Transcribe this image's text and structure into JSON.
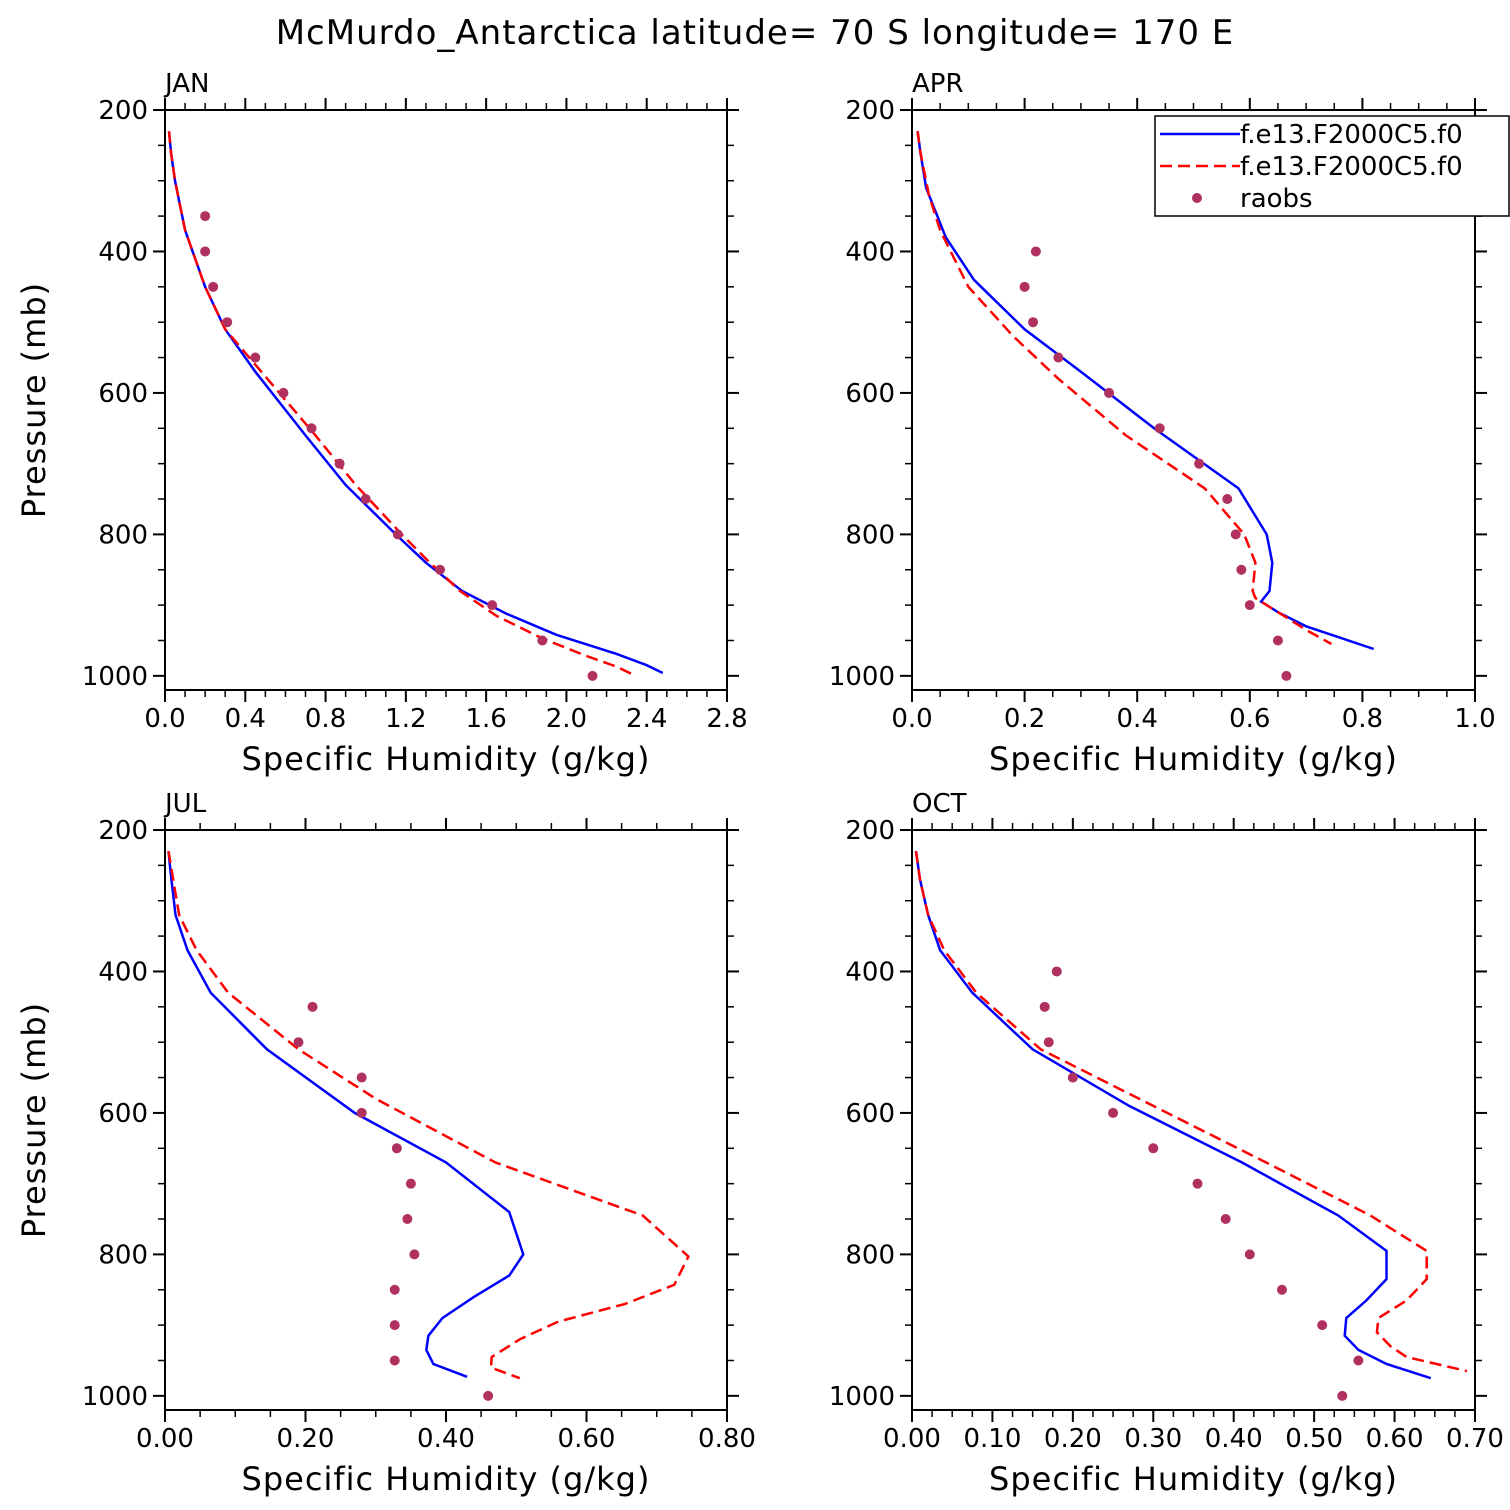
{
  "title": "McMurdo_Antarctica  latitude= 70 S longitude= 170 E",
  "legend": {
    "entries": [
      {
        "label": "f.e13.F2000C5.f0",
        "style": "solid",
        "color": "#0000ff"
      },
      {
        "label": "f.e13.F2000C5.f0",
        "style": "dashed",
        "color": "#ff0000"
      },
      {
        "label": "raobs",
        "style": "dot",
        "color": "#b03060"
      }
    ]
  },
  "colors": {
    "model_solid": "#0000ff",
    "model_dashed": "#ff0000",
    "raobs": "#b03060"
  },
  "chart_data": [
    {
      "type": "line",
      "panel": "JAN",
      "title": "JAN",
      "xlabel": "Specific Humidity (g/kg)",
      "ylabel": "Pressure (mb)",
      "xlim": [
        0,
        2.8
      ],
      "ylim": [
        1020,
        200
      ],
      "xticks": [
        0,
        0.4,
        0.8,
        1.2,
        1.6,
        2.0,
        2.4,
        2.8
      ],
      "xtick_labels": [
        "0.0",
        "0.4",
        "0.8",
        "1.2",
        "1.6",
        "2.0",
        "2.4",
        "2.8"
      ],
      "yticks": [
        200,
        400,
        600,
        800,
        1000
      ],
      "ytick_labels": [
        "200",
        "400",
        "600",
        "800",
        "1000"
      ],
      "series": [
        {
          "name": "f.e13.F2000C5.f0",
          "style": "solid",
          "points": [
            [
              0.02,
              230
            ],
            [
              0.03,
              260
            ],
            [
              0.05,
              300
            ],
            [
              0.1,
              370
            ],
            [
              0.2,
              450
            ],
            [
              0.3,
              510
            ],
            [
              0.45,
              570
            ],
            [
              0.7,
              660
            ],
            [
              0.9,
              730
            ],
            [
              1.15,
              800
            ],
            [
              1.3,
              840
            ],
            [
              1.48,
              880
            ],
            [
              1.7,
              912
            ],
            [
              1.95,
              942
            ],
            [
              2.25,
              969
            ],
            [
              2.4,
              985
            ],
            [
              2.48,
              996
            ]
          ]
        },
        {
          "name": "f.e13.F2000C5.f0",
          "style": "dashed",
          "points": [
            [
              0.02,
              230
            ],
            [
              0.03,
              260
            ],
            [
              0.05,
              300
            ],
            [
              0.1,
              370
            ],
            [
              0.2,
              450
            ],
            [
              0.3,
              510
            ],
            [
              0.48,
              570
            ],
            [
              0.75,
              660
            ],
            [
              0.95,
              730
            ],
            [
              1.18,
              800
            ],
            [
              1.32,
              840
            ],
            [
              1.47,
              880
            ],
            [
              1.65,
              915
            ],
            [
              1.88,
              947
            ],
            [
              2.1,
              972
            ],
            [
              2.25,
              987
            ],
            [
              2.33,
              998
            ]
          ]
        },
        {
          "name": "raobs",
          "style": "dot",
          "points": [
            [
              0.2,
              350
            ],
            [
              0.2,
              400
            ],
            [
              0.24,
              450
            ],
            [
              0.31,
              500
            ],
            [
              0.45,
              550
            ],
            [
              0.59,
              600
            ],
            [
              0.73,
              650
            ],
            [
              0.87,
              700
            ],
            [
              1.0,
              750
            ],
            [
              1.16,
              800
            ],
            [
              1.37,
              850
            ],
            [
              1.63,
              900
            ],
            [
              1.88,
              950
            ],
            [
              2.13,
              1000
            ]
          ]
        }
      ]
    },
    {
      "type": "line",
      "panel": "APR",
      "title": "APR",
      "xlabel": "Specific Humidity (g/kg)",
      "ylabel": "",
      "xlim": [
        0,
        1.0
      ],
      "ylim": [
        1020,
        200
      ],
      "xticks": [
        0,
        0.2,
        0.4,
        0.6,
        0.8,
        1.0
      ],
      "xtick_labels": [
        "0.0",
        "0.2",
        "0.4",
        "0.6",
        "0.8",
        "1.0"
      ],
      "yticks": [
        200,
        400,
        600,
        800,
        1000
      ],
      "ytick_labels": [
        "200",
        "400",
        "600",
        "800",
        "1000"
      ],
      "series": [
        {
          "name": "f.e13.F2000C5.f0",
          "style": "solid",
          "points": [
            [
              0.01,
              230
            ],
            [
              0.015,
              260
            ],
            [
              0.025,
              310
            ],
            [
              0.06,
              380
            ],
            [
              0.11,
              440
            ],
            [
              0.2,
              510
            ],
            [
              0.3,
              570
            ],
            [
              0.43,
              650
            ],
            [
              0.58,
              735
            ],
            [
              0.63,
              800
            ],
            [
              0.64,
              840
            ],
            [
              0.635,
              880
            ],
            [
              0.62,
              895
            ],
            [
              0.65,
              910
            ],
            [
              0.7,
              930
            ],
            [
              0.82,
              962
            ]
          ]
        },
        {
          "name": "f.e13.F2000C5.f0",
          "style": "dashed",
          "points": [
            [
              0.01,
              230
            ],
            [
              0.015,
              260
            ],
            [
              0.03,
              320
            ],
            [
              0.05,
              370
            ],
            [
              0.1,
              450
            ],
            [
              0.18,
              520
            ],
            [
              0.26,
              580
            ],
            [
              0.38,
              660
            ],
            [
              0.52,
              735
            ],
            [
              0.59,
              800
            ],
            [
              0.61,
              840
            ],
            [
              0.605,
              880
            ],
            [
              0.61,
              890
            ],
            [
              0.65,
              910
            ],
            [
              0.7,
              935
            ],
            [
              0.745,
              955
            ]
          ]
        },
        {
          "name": "raobs",
          "style": "dot",
          "points": [
            [
              0.22,
              400
            ],
            [
              0.2,
              450
            ],
            [
              0.215,
              500
            ],
            [
              0.26,
              550
            ],
            [
              0.35,
              600
            ],
            [
              0.44,
              650
            ],
            [
              0.51,
              700
            ],
            [
              0.56,
              750
            ],
            [
              0.575,
              800
            ],
            [
              0.585,
              850
            ],
            [
              0.6,
              900
            ],
            [
              0.65,
              950
            ],
            [
              0.665,
              1000
            ]
          ]
        }
      ]
    },
    {
      "type": "line",
      "panel": "JUL",
      "title": "JUL",
      "xlabel": "Specific Humidity (g/kg)",
      "ylabel": "Pressure (mb)",
      "xlim": [
        0,
        0.8
      ],
      "ylim": [
        1020,
        200
      ],
      "xticks": [
        0,
        0.2,
        0.4,
        0.6,
        0.8
      ],
      "xtick_labels": [
        "0.00",
        "0.20",
        "0.40",
        "0.60",
        "0.80"
      ],
      "yticks": [
        200,
        400,
        600,
        800,
        1000
      ],
      "ytick_labels": [
        "200",
        "400",
        "600",
        "800",
        "1000"
      ],
      "series": [
        {
          "name": "f.e13.F2000C5.f0",
          "style": "solid",
          "points": [
            [
              0.005,
              230
            ],
            [
              0.008,
              260
            ],
            [
              0.015,
              320
            ],
            [
              0.032,
              370
            ],
            [
              0.065,
              430
            ],
            [
              0.145,
              510
            ],
            [
              0.27,
              600
            ],
            [
              0.4,
              670
            ],
            [
              0.49,
              740
            ],
            [
              0.51,
              800
            ],
            [
              0.49,
              830
            ],
            [
              0.44,
              860
            ],
            [
              0.395,
              890
            ],
            [
              0.375,
              915
            ],
            [
              0.372,
              935
            ],
            [
              0.382,
              955
            ],
            [
              0.43,
              973
            ]
          ]
        },
        {
          "name": "f.e13.F2000C5.f0",
          "style": "dashed",
          "points": [
            [
              0.005,
              230
            ],
            [
              0.01,
              260
            ],
            [
              0.02,
              320
            ],
            [
              0.045,
              370
            ],
            [
              0.09,
              430
            ],
            [
              0.19,
              510
            ],
            [
              0.3,
              580
            ],
            [
              0.47,
              670
            ],
            [
              0.68,
              745
            ],
            [
              0.745,
              803
            ],
            [
              0.725,
              843
            ],
            [
              0.655,
              870
            ],
            [
              0.56,
              895
            ],
            [
              0.505,
              920
            ],
            [
              0.465,
              945
            ],
            [
              0.464,
              960
            ],
            [
              0.505,
              975
            ]
          ]
        },
        {
          "name": "raobs",
          "style": "dot",
          "points": [
            [
              0.21,
              450
            ],
            [
              0.19,
              500
            ],
            [
              0.28,
              550
            ],
            [
              0.28,
              600
            ],
            [
              0.33,
              650
            ],
            [
              0.35,
              700
            ],
            [
              0.345,
              750
            ],
            [
              0.355,
              800
            ],
            [
              0.327,
              850
            ],
            [
              0.327,
              900
            ],
            [
              0.327,
              950
            ],
            [
              0.46,
              1000
            ]
          ]
        }
      ]
    },
    {
      "type": "line",
      "panel": "OCT",
      "title": "OCT",
      "xlabel": "Specific Humidity (g/kg)",
      "ylabel": "",
      "xlim": [
        0,
        0.7
      ],
      "ylim": [
        1020,
        200
      ],
      "xticks": [
        0,
        0.1,
        0.2,
        0.3,
        0.4,
        0.5,
        0.6,
        0.7
      ],
      "xtick_labels": [
        "0.00",
        "0.10",
        "0.20",
        "0.30",
        "0.40",
        "0.50",
        "0.60",
        "0.70"
      ],
      "yticks": [
        200,
        400,
        600,
        800,
        1000
      ],
      "ytick_labels": [
        "200",
        "400",
        "600",
        "800",
        "1000"
      ],
      "series": [
        {
          "name": "f.e13.F2000C5.f0",
          "style": "solid",
          "points": [
            [
              0.005,
              230
            ],
            [
              0.01,
              270
            ],
            [
              0.02,
              320
            ],
            [
              0.035,
              370
            ],
            [
              0.075,
              430
            ],
            [
              0.15,
              510
            ],
            [
              0.27,
              590
            ],
            [
              0.41,
              670
            ],
            [
              0.53,
              745
            ],
            [
              0.59,
              795
            ],
            [
              0.59,
              835
            ],
            [
              0.565,
              865
            ],
            [
              0.54,
              890
            ],
            [
              0.538,
              915
            ],
            [
              0.555,
              935
            ],
            [
              0.59,
              955
            ],
            [
              0.645,
              975
            ]
          ]
        },
        {
          "name": "f.e13.F2000C5.f0",
          "style": "dashed",
          "points": [
            [
              0.005,
              230
            ],
            [
              0.01,
              270
            ],
            [
              0.02,
              320
            ],
            [
              0.04,
              370
            ],
            [
              0.08,
              430
            ],
            [
              0.16,
              510
            ],
            [
              0.3,
              590
            ],
            [
              0.44,
              670
            ],
            [
              0.57,
              745
            ],
            [
              0.64,
              795
            ],
            [
              0.64,
              835
            ],
            [
              0.615,
              865
            ],
            [
              0.58,
              890
            ],
            [
              0.578,
              910
            ],
            [
              0.595,
              930
            ],
            [
              0.615,
              945
            ],
            [
              0.69,
              965
            ]
          ]
        },
        {
          "name": "raobs",
          "style": "dot",
          "points": [
            [
              0.18,
              400
            ],
            [
              0.165,
              450
            ],
            [
              0.17,
              500
            ],
            [
              0.2,
              550
            ],
            [
              0.25,
              600
            ],
            [
              0.3,
              650
            ],
            [
              0.355,
              700
            ],
            [
              0.39,
              750
            ],
            [
              0.42,
              800
            ],
            [
              0.46,
              850
            ],
            [
              0.51,
              900
            ],
            [
              0.555,
              950
            ],
            [
              0.535,
              1000
            ]
          ]
        }
      ]
    }
  ]
}
